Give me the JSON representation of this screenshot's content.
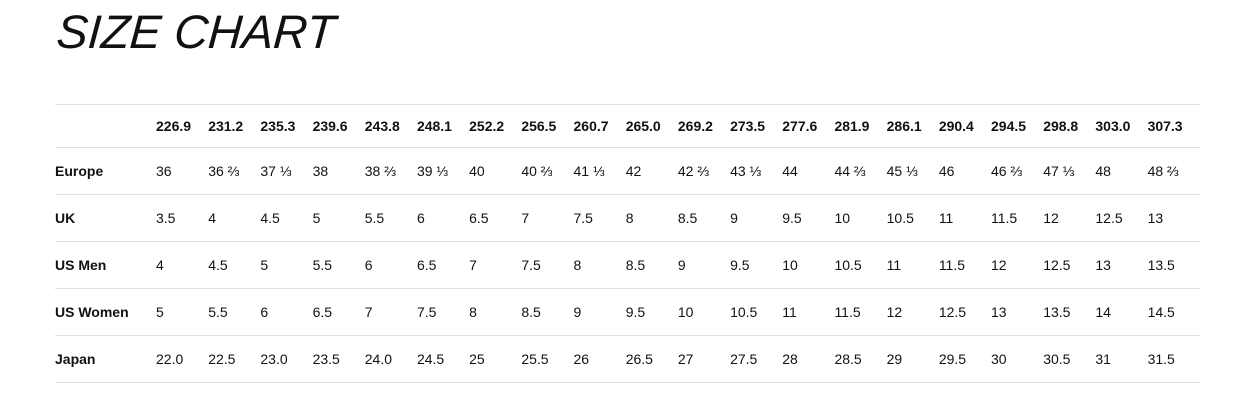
{
  "page": {
    "title": "SIZE CHART"
  },
  "size_chart": {
    "measurements_mm": [
      "226.9",
      "231.2",
      "235.3",
      "239.6",
      "243.8",
      "248.1",
      "252.2",
      "256.5",
      "260.7",
      "265.0",
      "269.2",
      "273.5",
      "277.6",
      "281.9",
      "286.1",
      "290.4",
      "294.5",
      "298.8",
      "303.0",
      "307.3"
    ],
    "rows": [
      {
        "label": "Europe",
        "values": [
          "36",
          "36 ⅔",
          "37 ⅓",
          "38",
          "38 ⅔",
          "39 ⅓",
          "40",
          "40 ⅔",
          "41 ⅓",
          "42",
          "42 ⅔",
          "43 ⅓",
          "44",
          "44 ⅔",
          "45 ⅓",
          "46",
          "46 ⅔",
          "47 ⅓",
          "48",
          "48 ⅔"
        ]
      },
      {
        "label": "UK",
        "values": [
          "3.5",
          "4",
          "4.5",
          "5",
          "5.5",
          "6",
          "6.5",
          "7",
          "7.5",
          "8",
          "8.5",
          "9",
          "9.5",
          "10",
          "10.5",
          "11",
          "11.5",
          "12",
          "12.5",
          "13"
        ]
      },
      {
        "label": "US Men",
        "values": [
          "4",
          "4.5",
          "5",
          "5.5",
          "6",
          "6.5",
          "7",
          "7.5",
          "8",
          "8.5",
          "9",
          "9.5",
          "10",
          "10.5",
          "11",
          "11.5",
          "12",
          "12.5",
          "13",
          "13.5"
        ]
      },
      {
        "label": "US Women",
        "values": [
          "5",
          "5.5",
          "6",
          "6.5",
          "7",
          "7.5",
          "8",
          "8.5",
          "9",
          "9.5",
          "10",
          "10.5",
          "11",
          "11.5",
          "12",
          "12.5",
          "13",
          "13.5",
          "14",
          "14.5"
        ]
      },
      {
        "label": "Japan",
        "values": [
          "22.0",
          "22.5",
          "23.0",
          "23.5",
          "24.0",
          "24.5",
          "25",
          "25.5",
          "26",
          "26.5",
          "27",
          "27.5",
          "28",
          "28.5",
          "29",
          "29.5",
          "30",
          "30.5",
          "31",
          "31.5"
        ]
      }
    ]
  },
  "colors": {
    "text": "#111111",
    "divider": "#e2e2e2",
    "background": "#ffffff"
  }
}
